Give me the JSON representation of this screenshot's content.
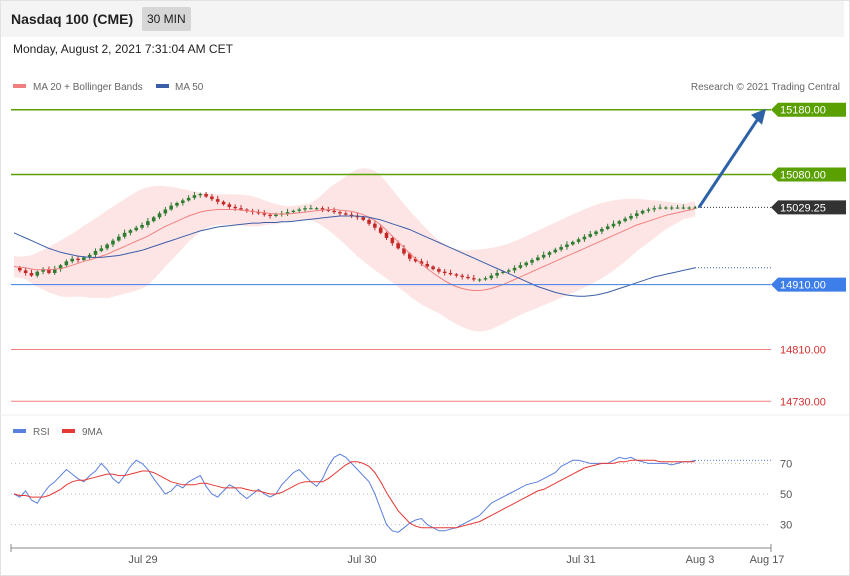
{
  "header": {
    "title": "Nasdaq 100 (CME)",
    "interval": "30 MIN",
    "datetime": "Monday, August 2, 2021 7:31:04 AM CET"
  },
  "legend": {
    "ma20": "MA 20 + Bollinger Bands",
    "ma50": "MA 50",
    "credit": "Research © 2021 Trading Central",
    "rsi": "RSI",
    "rsi_ma": "9MA"
  },
  "colors": {
    "bull": "#2e7d32",
    "bear": "#c62828",
    "ma20": "#f08080",
    "ma50": "#3b5ea8",
    "band_fill": "#fde0e0",
    "resistance": "#5aa000",
    "support": "#f08080",
    "pivot": "#3d7ee8",
    "last": "#333333",
    "arrow": "#2e62a8",
    "rsi": "#5b7fdc",
    "rsi_ma": "#e53935"
  },
  "chart_data": [
    {
      "type": "candlestick",
      "title": "Nasdaq 100 (CME)",
      "ylim": [
        14715,
        15195
      ],
      "x_ticks": [
        "Jul 29",
        "Jul 30",
        "Jul 31",
        "Aug 3",
        "Aug 17"
      ],
      "levels": [
        {
          "label": "15180.00",
          "value": 15180,
          "kind": "resistance"
        },
        {
          "label": "15080.00",
          "value": 15080,
          "kind": "resistance"
        },
        {
          "label": "15029.25",
          "value": 15029.25,
          "kind": "last"
        },
        {
          "label": "14910.00",
          "value": 14910,
          "kind": "pivot"
        },
        {
          "label": "14810.00",
          "value": 14810,
          "kind": "support"
        },
        {
          "label": "14730.00",
          "value": 14730,
          "kind": "support"
        }
      ],
      "target_arrow": {
        "from": 15029.25,
        "to": 15180
      },
      "closes": [
        14936,
        14932,
        14928,
        14924,
        14930,
        14934,
        14928,
        14934,
        14940,
        14946,
        14950,
        14948,
        14952,
        14956,
        14962,
        14966,
        14972,
        14978,
        14984,
        14990,
        14994,
        14998,
        15002,
        15008,
        15014,
        15020,
        15026,
        15032,
        15036,
        15040,
        15044,
        15048,
        15050,
        15046,
        15042,
        15038,
        15034,
        15030,
        15028,
        15026,
        15024,
        15022,
        15020,
        15018,
        15016,
        15018,
        15020,
        15022,
        15024,
        15026,
        15028,
        15028,
        15028,
        15026,
        15024,
        15022,
        15020,
        15018,
        15016,
        15014,
        15010,
        15004,
        14998,
        14990,
        14982,
        14974,
        14966,
        14958,
        14950,
        14946,
        14942,
        14938,
        14934,
        14930,
        14928,
        14926,
        14924,
        14922,
        14920,
        14918,
        14918,
        14920,
        14924,
        14928,
        14930,
        14932,
        14936,
        14940,
        14944,
        14948,
        14952,
        14956,
        14960,
        14964,
        14968,
        14972,
        14976,
        14980,
        14984,
        14988,
        14992,
        14996,
        15000,
        15004,
        15008,
        15012,
        15016,
        15020,
        15024,
        15026,
        15028,
        15029,
        15029,
        15029,
        15029,
        15029,
        15029,
        15029
      ],
      "ma20": [
        14938,
        14937,
        14936,
        14934,
        14933,
        14933,
        14933,
        14934,
        14935,
        14937,
        14940,
        14943,
        14946,
        14948,
        14951,
        14954,
        14957,
        14961,
        14965,
        14969,
        14973,
        14977,
        14981,
        14985,
        14990,
        14995,
        15000,
        15004,
        15008,
        15012,
        15016,
        15019,
        15022,
        15024,
        15025,
        15026,
        15026,
        15026,
        15026,
        15025,
        15024,
        15023,
        15022,
        15021,
        15020,
        15019,
        15019,
        15019,
        15020,
        15021,
        15022,
        15023,
        15024,
        15025,
        15026,
        15026,
        15025,
        15024,
        15023,
        15021,
        15018,
        15014,
        15009,
        15002,
        14994,
        14985,
        14976,
        14967,
        14958,
        14950,
        14942,
        14935,
        14928,
        14922,
        14916,
        14911,
        14907,
        14904,
        14902,
        14901,
        14901,
        14902,
        14904,
        14907,
        14910,
        14914,
        14918,
        14922,
        14926,
        14930,
        14934,
        14938,
        14942,
        14946,
        14950,
        14954,
        14958,
        14962,
        14966,
        14970,
        14974,
        14978,
        14982,
        14986,
        14990,
        14994,
        14998,
        15002,
        15005,
        15008,
        15011,
        15014,
        15017,
        15019,
        15021,
        15023,
        15025,
        15027
      ],
      "ma50": [
        14990,
        14986,
        14982,
        14978,
        14974,
        14970,
        14966,
        14963,
        14960,
        14958,
        14956,
        14954,
        14953,
        14952,
        14952,
        14952,
        14953,
        14954,
        14955,
        14957,
        14959,
        14961,
        14963,
        14966,
        14969,
        14972,
        14975,
        14978,
        14981,
        14984,
        14987,
        14990,
        14993,
        14995,
        14997,
        14999,
        15000,
        15001,
        15002,
        15003,
        15004,
        15005,
        15005,
        15006,
        15006,
        15006,
        15007,
        15007,
        15008,
        15009,
        15010,
        15011,
        15012,
        15013,
        15014,
        15015,
        15016,
        15016,
        15016,
        15016,
        15015,
        15014,
        15012,
        15010,
        15007,
        15004,
        15001,
        14998,
        14995,
        14991,
        14987,
        14983,
        14979,
        14975,
        14971,
        14967,
        14963,
        14959,
        14955,
        14951,
        14947,
        14943,
        14939,
        14935,
        14931,
        14927,
        14923,
        14919,
        14915,
        14911,
        14907,
        14904,
        14901,
        14898,
        14896,
        14894,
        14893,
        14892,
        14892,
        14893,
        14894,
        14896,
        14898,
        14901,
        14904,
        14907,
        14910,
        14913,
        14916,
        14919,
        14922,
        14924,
        14926,
        14928,
        14930,
        14932,
        14934,
        14936
      ]
    },
    {
      "type": "line",
      "title": "RSI",
      "ylim": [
        18,
        82
      ],
      "ticks": [
        70,
        50,
        30
      ],
      "series": [
        {
          "name": "RSI",
          "values": [
            50,
            48,
            52,
            46,
            44,
            50,
            55,
            58,
            62,
            66,
            63,
            60,
            58,
            62,
            65,
            70,
            66,
            60,
            57,
            62,
            68,
            72,
            70,
            66,
            60,
            55,
            50,
            52,
            56,
            54,
            58,
            60,
            62,
            55,
            50,
            48,
            52,
            56,
            54,
            50,
            47,
            50,
            53,
            50,
            48,
            50,
            56,
            60,
            64,
            66,
            62,
            58,
            55,
            60,
            68,
            74,
            76,
            74,
            70,
            66,
            62,
            58,
            50,
            40,
            30,
            26,
            25,
            28,
            31,
            33,
            34,
            30,
            28,
            26,
            26,
            27,
            28,
            30,
            32,
            34,
            36,
            40,
            44,
            46,
            48,
            50,
            52,
            54,
            56,
            57,
            58,
            60,
            62,
            64,
            68,
            70,
            72,
            72,
            71,
            70,
            70,
            70,
            70,
            72,
            74,
            73,
            74,
            72,
            71,
            70,
            70,
            70,
            70,
            69,
            70,
            71,
            71,
            72
          ]
        },
        {
          "name": "9MA",
          "values": [
            50,
            49,
            49,
            48,
            48,
            48,
            49,
            51,
            53,
            56,
            58,
            59,
            59,
            60,
            61,
            62,
            63,
            63,
            62,
            62,
            63,
            64,
            65,
            65,
            64,
            62,
            60,
            58,
            57,
            56,
            56,
            56,
            57,
            57,
            56,
            55,
            54,
            54,
            54,
            54,
            53,
            52,
            52,
            51,
            50,
            50,
            51,
            53,
            55,
            57,
            58,
            58,
            58,
            58,
            60,
            63,
            66,
            69,
            71,
            71,
            70,
            68,
            64,
            58,
            51,
            45,
            39,
            35,
            31,
            29,
            28,
            28,
            28,
            28,
            28,
            28,
            28,
            29,
            30,
            31,
            32,
            34,
            36,
            38,
            40,
            42,
            44,
            46,
            48,
            50,
            52,
            53,
            55,
            57,
            59,
            61,
            63,
            65,
            67,
            68,
            69,
            70,
            70,
            70,
            71,
            71,
            72,
            72,
            72,
            72,
            72,
            71,
            71,
            71,
            71,
            71,
            71,
            71
          ]
        }
      ]
    }
  ]
}
